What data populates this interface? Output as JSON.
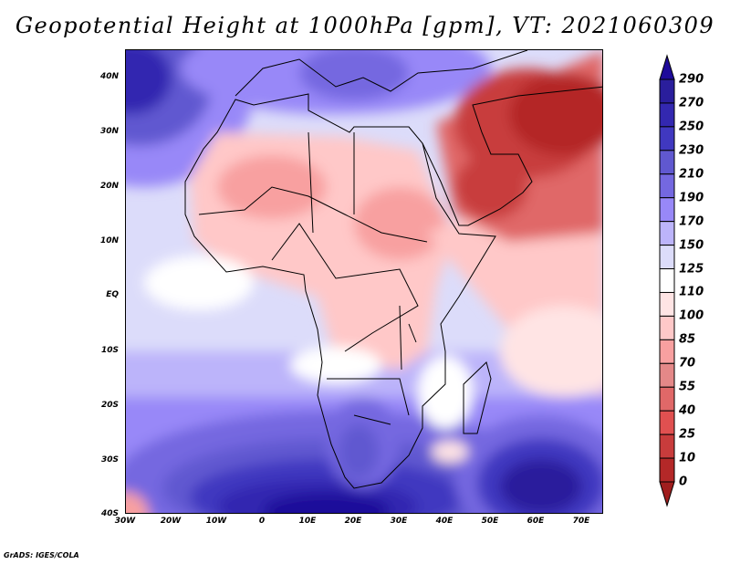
{
  "title": "Geopotential Height at 1000hPa [gpm], VT: 2021060309",
  "footer": "GrADS: IGES/COLA",
  "axes": {
    "lat_labels": [
      "40N",
      "30N",
      "20N",
      "10N",
      "EQ",
      "10S",
      "20S",
      "30S",
      "40S"
    ],
    "lon_labels": [
      "30W",
      "20W",
      "10W",
      "0",
      "10E",
      "20E",
      "30E",
      "40E",
      "50E",
      "60E",
      "70E"
    ]
  },
  "colorbar": {
    "labels": [
      "290",
      "270",
      "250",
      "230",
      "210",
      "190",
      "170",
      "150",
      "125",
      "110",
      "100",
      "85",
      "70",
      "55",
      "40",
      "25",
      "10",
      "0"
    ],
    "colors": [
      "#1e0a9a",
      "#2a1e9c",
      "#3328b0",
      "#4038c0",
      "#6058d0",
      "#7468e0",
      "#9888f8",
      "#bcb4fa",
      "#dcdcfa",
      "#ffffff",
      "#ffe4e4",
      "#ffc8c8",
      "#f8a0a0",
      "#e48888",
      "#e06868",
      "#e05050",
      "#c83c3c",
      "#b42828",
      "#a01e1e"
    ]
  }
}
